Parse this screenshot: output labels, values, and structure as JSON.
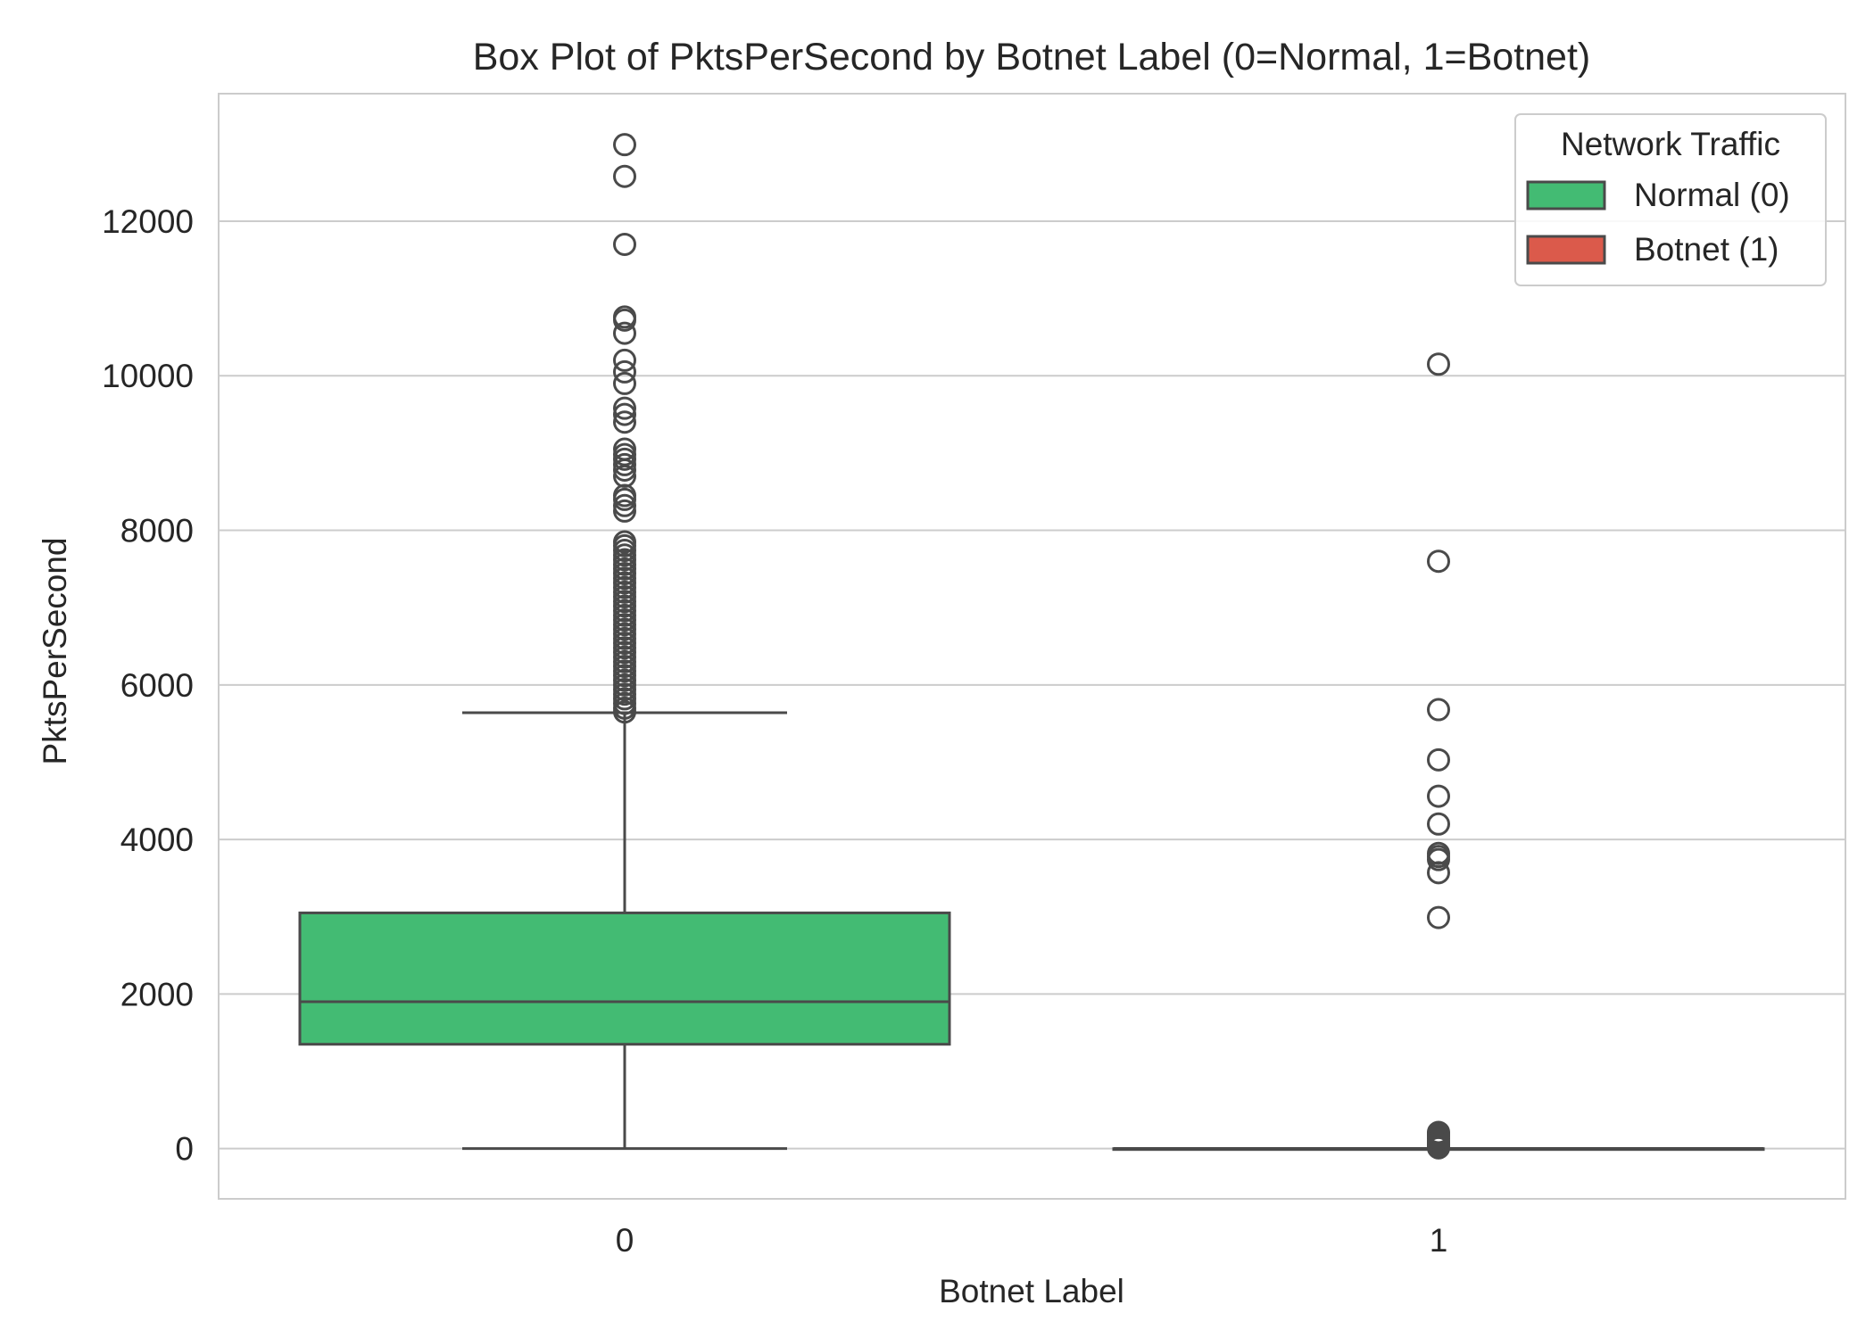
{
  "chart_data": {
    "type": "box",
    "title": "Box Plot of PktsPerSecond by Botnet Label (0=Normal, 1=Botnet)",
    "xlabel": "Botnet Label",
    "ylabel": "PktsPerSecond",
    "ylim": [
      -650,
      13650
    ],
    "yticks": [
      0,
      2000,
      4000,
      6000,
      8000,
      10000,
      12000
    ],
    "grid": true,
    "categories": [
      "0",
      "1"
    ],
    "legend": {
      "title": "Network Traffic",
      "position": "top-right",
      "entries": [
        {
          "label": "Normal (0)",
          "color": "#43bb73"
        },
        {
          "label": "Botnet (1)",
          "color": "#db5a4b"
        }
      ]
    },
    "boxes": [
      {
        "category": "0",
        "series": "Normal (0)",
        "color": "#43bb73",
        "whisker_low": 0,
        "q1": 1350,
        "median": 1900,
        "q3": 3050,
        "whisker_high": 5640,
        "outliers": [
          5650,
          5700,
          5760,
          5820,
          5880,
          5940,
          6000,
          6060,
          6120,
          6180,
          6240,
          6300,
          6360,
          6420,
          6480,
          6540,
          6600,
          6660,
          6720,
          6780,
          6840,
          6900,
          6960,
          7020,
          7080,
          7140,
          7200,
          7260,
          7320,
          7380,
          7440,
          7500,
          7560,
          7620,
          7680,
          7740,
          7800,
          7850,
          8250,
          8320,
          8400,
          8450,
          8700,
          8780,
          8850,
          8920,
          8980,
          9050,
          9400,
          9500,
          9580,
          9900,
          10050,
          10200,
          10550,
          10720,
          10760,
          11700,
          12580,
          12990
        ]
      },
      {
        "category": "1",
        "series": "Botnet (1)",
        "color": "#db5a4b",
        "whisker_low": 0,
        "q1": 0,
        "median": 0,
        "q3": 0,
        "whisker_high": 0,
        "outliers": [
          10,
          20,
          40,
          60,
          80,
          100,
          130,
          160,
          190,
          210,
          2990,
          3570,
          3740,
          3780,
          3820,
          4200,
          4560,
          5030,
          5680,
          7600,
          10150
        ]
      }
    ]
  }
}
